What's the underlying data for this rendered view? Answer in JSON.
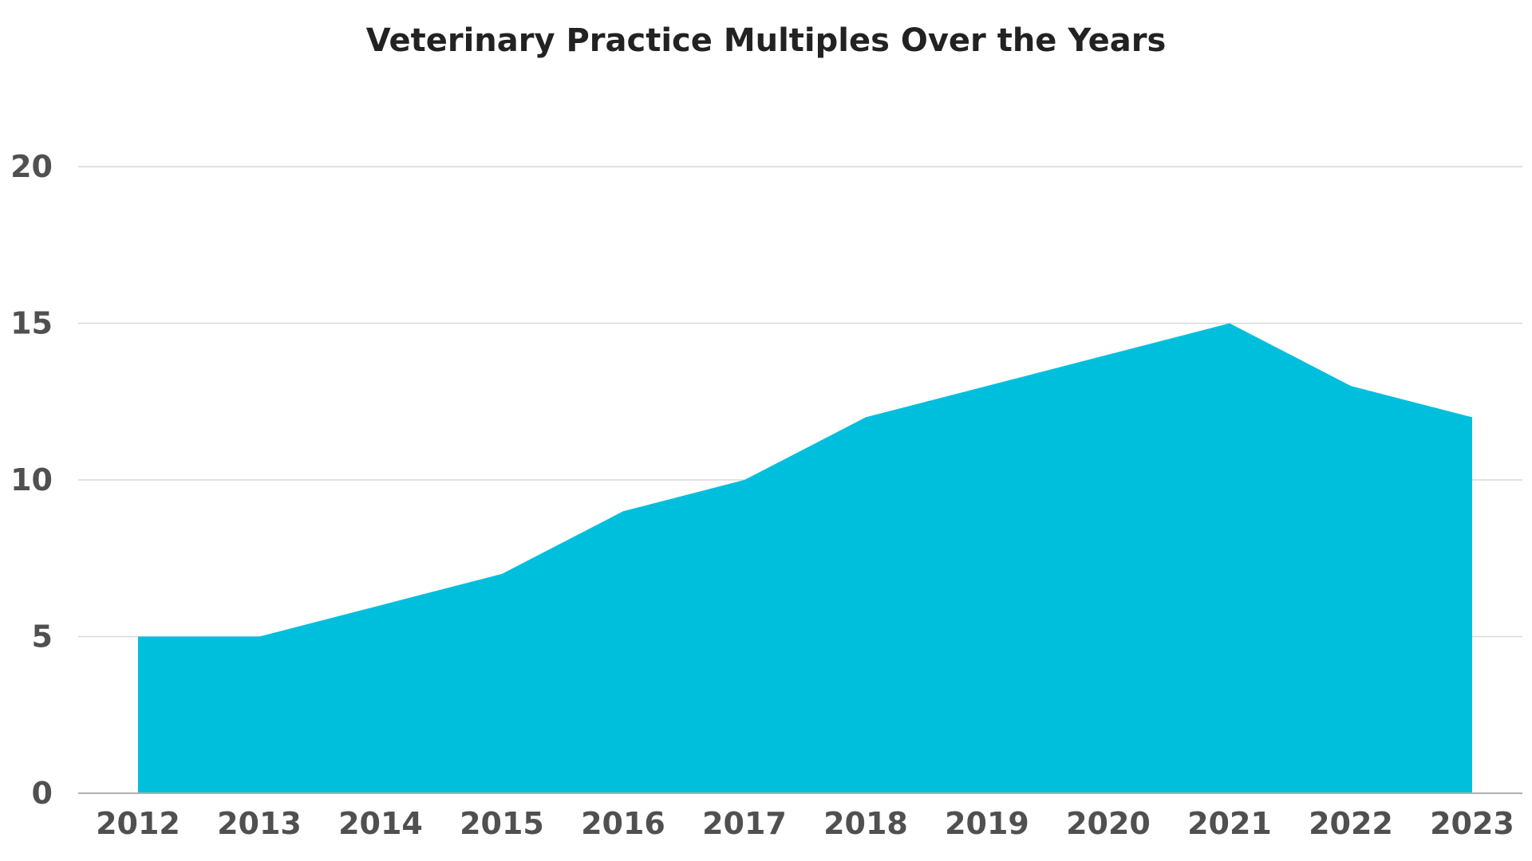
{
  "chart_data": {
    "type": "area",
    "title": "Veterinary Practice Multiples Over the Years",
    "xlabel": "",
    "ylabel": "",
    "categories": [
      "2012",
      "2013",
      "2014",
      "2015",
      "2016",
      "2017",
      "2018",
      "2019",
      "2020",
      "2021",
      "2022",
      "2023"
    ],
    "series": [
      {
        "values": [
          5,
          5,
          6,
          7,
          9,
          10,
          12,
          13,
          14,
          15,
          13,
          12
        ]
      }
    ],
    "ylim": [
      0,
      20
    ],
    "yticks": [
      "0",
      "5",
      "10",
      "15",
      "20"
    ],
    "grid": true,
    "legend": "none",
    "colors": {
      "area": "#00bfdd",
      "grid": "#d9d9d9",
      "axis": "#b0b0b0",
      "text": "#505050"
    }
  }
}
